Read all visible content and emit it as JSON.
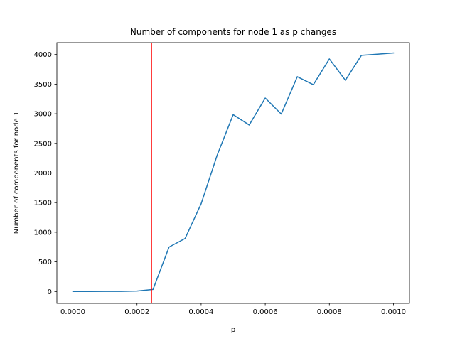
{
  "chart_data": {
    "type": "line",
    "title": "Number of components for node 1 as p changes",
    "xlabel": "p",
    "ylabel": "Number of components for node 1",
    "xlim": [
      -5e-05,
      0.00105
    ],
    "ylim": [
      -200,
      4200
    ],
    "xticks": [
      0,
      0.0002,
      0.0004,
      0.0006,
      0.0008,
      0.001
    ],
    "xtick_labels": [
      "0.0000",
      "0.0002",
      "0.0004",
      "0.0006",
      "0.0008",
      "0.0010"
    ],
    "yticks": [
      0,
      500,
      1000,
      1500,
      2000,
      2500,
      3000,
      3500,
      4000
    ],
    "ytick_labels": [
      "0",
      "500",
      "1000",
      "1500",
      "2000",
      "2500",
      "3000",
      "3500",
      "4000"
    ],
    "grid": false,
    "series": [
      {
        "color": "#1f77b4",
        "x": [
          0,
          5e-05,
          0.0001,
          0.00015,
          0.0002,
          0.00025,
          0.0003,
          0.00035,
          0.0004,
          0.00045,
          0.0005,
          0.00055,
          0.0006,
          0.00065,
          0.0007,
          0.00075,
          0.0008,
          0.00085,
          0.0009,
          0.00095,
          0.001
        ],
        "y": [
          1,
          1,
          2,
          3,
          8,
          35,
          750,
          895,
          1480,
          2300,
          2985,
          2810,
          3265,
          2995,
          3625,
          3490,
          3925,
          3565,
          3985,
          4005,
          4025
        ]
      }
    ],
    "vline": {
      "x": 0.000245,
      "color": "#ff0000"
    }
  }
}
